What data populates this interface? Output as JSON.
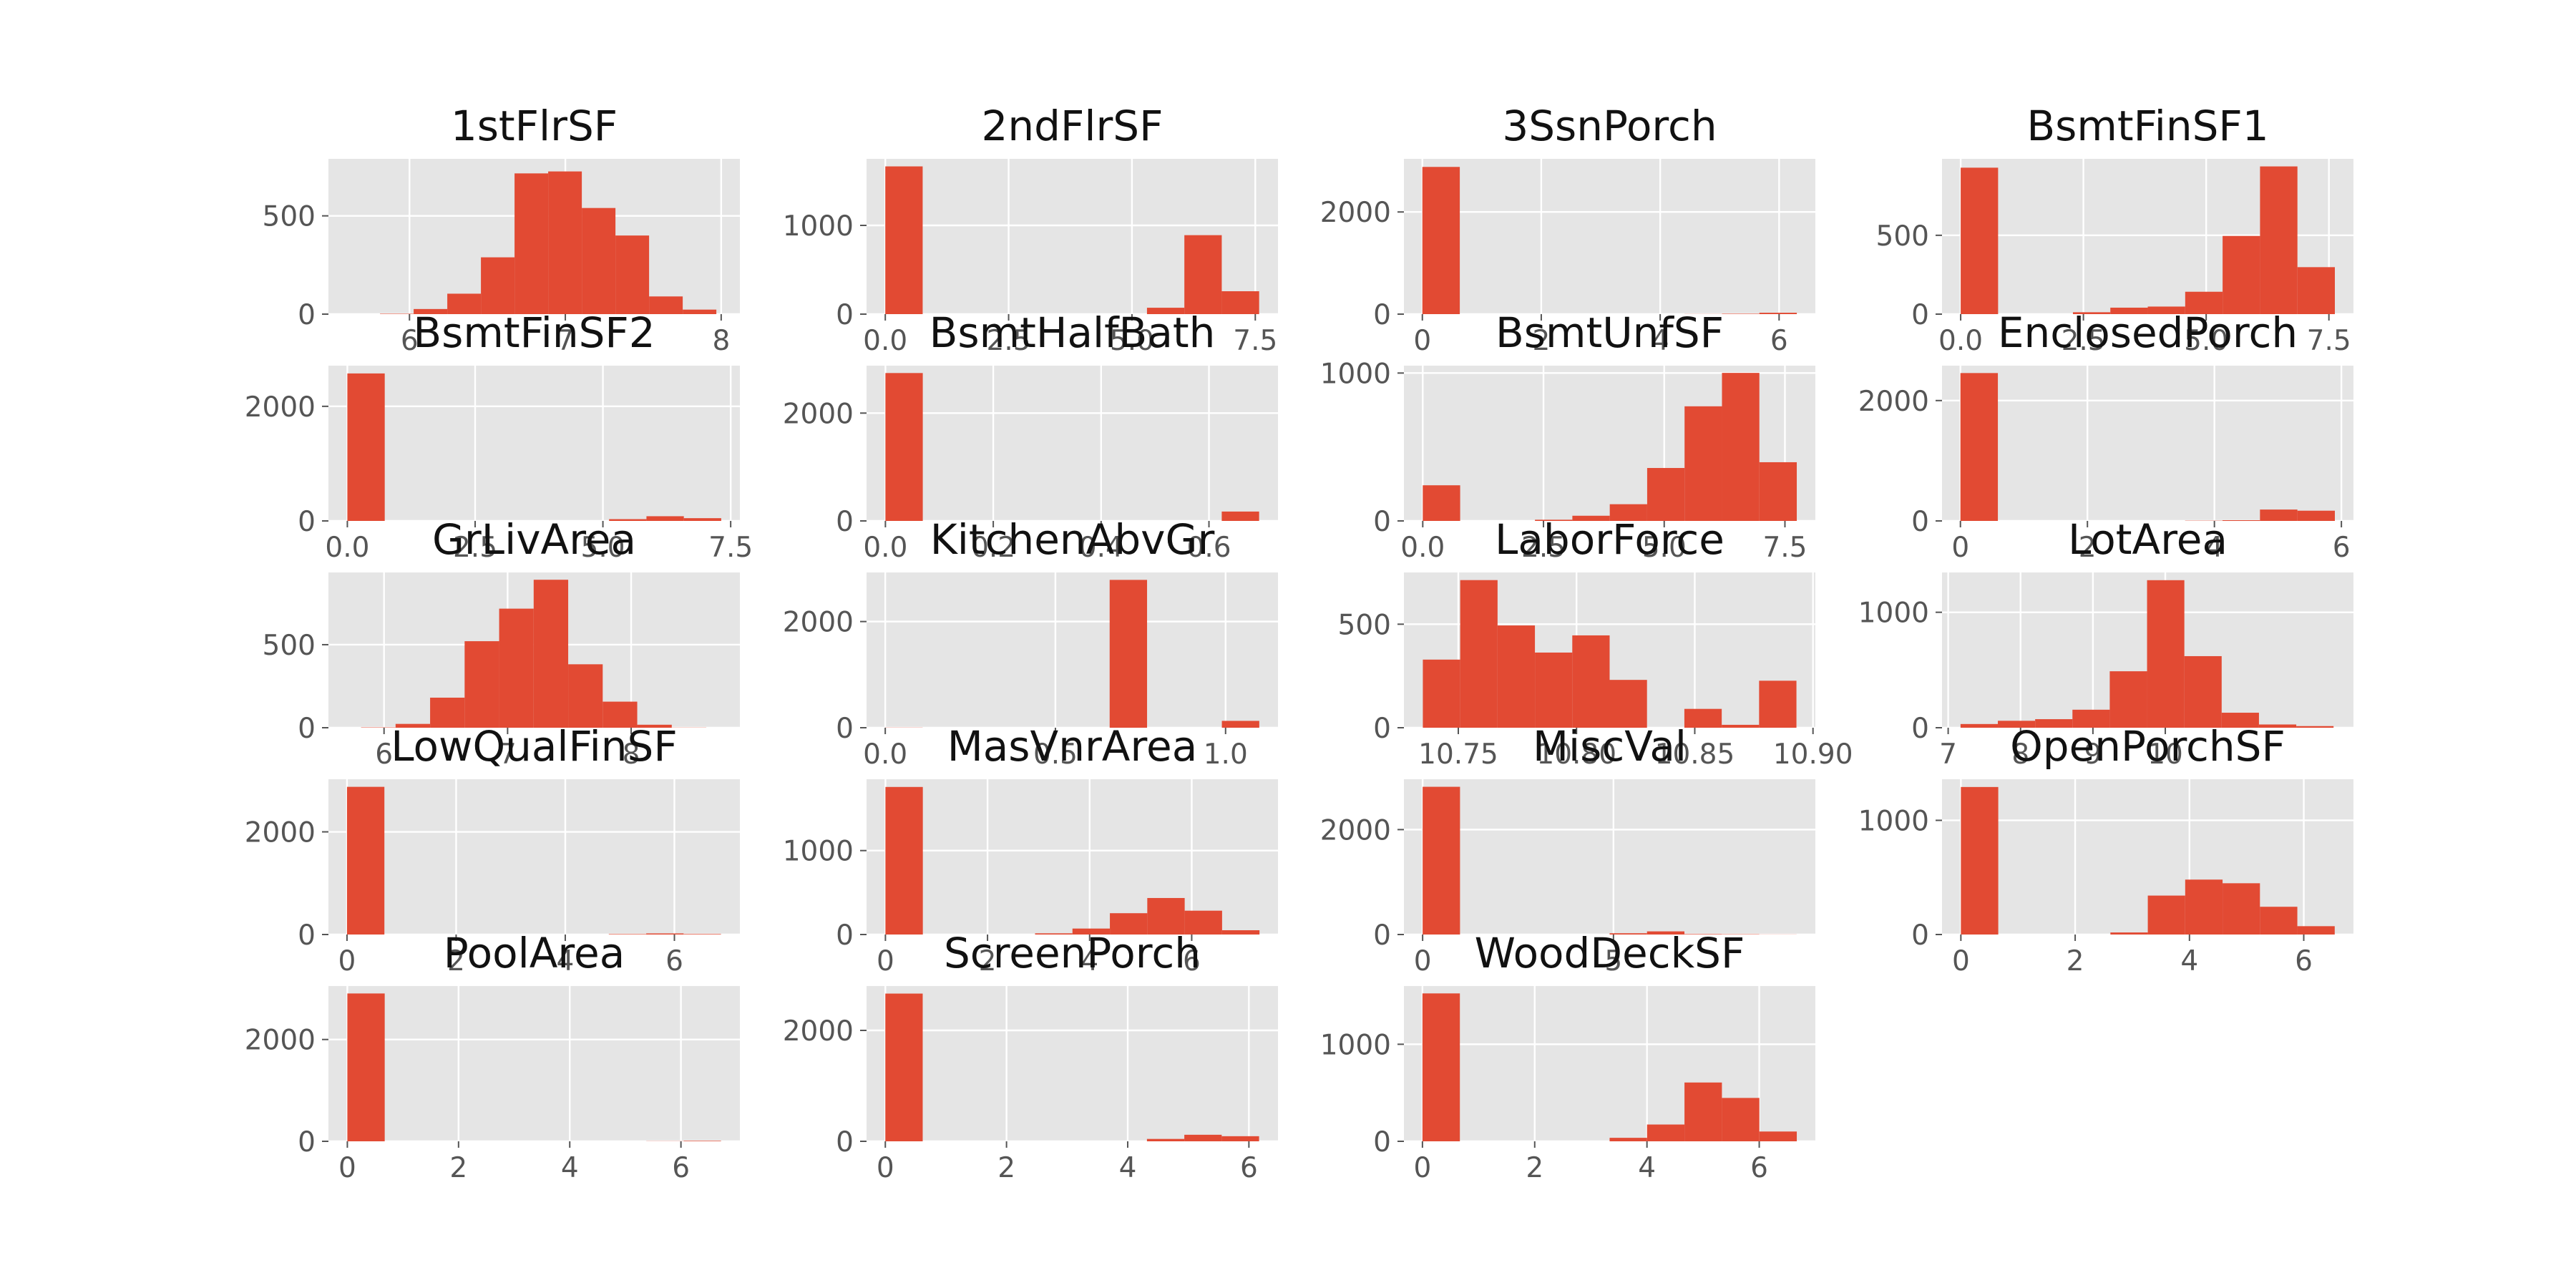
{
  "figure": {
    "bar_color": "#E24A33",
    "panel_bg": "#E5E5E5",
    "grid_color": "#FFFFFF",
    "tick_color": "#555555"
  },
  "chart_data": [
    {
      "type": "bar",
      "title": "1stFlrSF",
      "bins": {
        "start": 5.811,
        "width": 0.2158,
        "counts": [
          2,
          26,
          104,
          289,
          716,
          726,
          540,
          400,
          90,
          23
        ]
      },
      "xlim": [
        5.48,
        8.12
      ],
      "ylim": [
        0,
        790
      ],
      "xticks": [
        {
          "v": 6,
          "l": "6"
        },
        {
          "v": 7,
          "l": "7"
        },
        {
          "v": 8,
          "l": "8"
        }
      ],
      "yticks": [
        {
          "v": 0,
          "l": "0"
        },
        {
          "v": 500,
          "l": "500"
        }
      ],
      "grid": true
    },
    {
      "type": "bar",
      "title": "2ndFlrSF",
      "bins": {
        "start": 0,
        "width": 0.7578,
        "counts": [
          1665,
          0,
          0,
          0,
          0,
          0,
          0,
          72,
          890,
          258
        ]
      },
      "xlim": [
        -0.38,
        7.96
      ],
      "ylim": [
        0,
        1750
      ],
      "xticks": [
        {
          "v": 0,
          "l": "0.0"
        },
        {
          "v": 2.5,
          "l": "2.5"
        },
        {
          "v": 5,
          "l": "5.0"
        },
        {
          "v": 7.5,
          "l": "7.5"
        }
      ],
      "yticks": [
        {
          "v": 0,
          "l": "0"
        },
        {
          "v": 1000,
          "l": "1000"
        }
      ],
      "grid": true
    },
    {
      "type": "bar",
      "title": "3SsnPorch",
      "bins": {
        "start": 0,
        "width": 0.6298,
        "counts": [
          2882,
          0,
          0,
          0,
          0,
          0,
          0,
          2,
          8,
          27
        ]
      },
      "xlim": [
        -0.31,
        6.61
      ],
      "ylim": [
        0,
        3040
      ],
      "xticks": [
        {
          "v": 0,
          "l": "0"
        },
        {
          "v": 2,
          "l": "2"
        },
        {
          "v": 4,
          "l": "4"
        },
        {
          "v": 6,
          "l": "6"
        }
      ],
      "yticks": [
        {
          "v": 0,
          "l": "0"
        },
        {
          "v": 2000,
          "l": "2000"
        }
      ],
      "grid": true
    },
    {
      "type": "bar",
      "title": "BsmtFinSF1",
      "bins": {
        "start": 0,
        "width": 0.7621,
        "counts": [
          929,
          0,
          0,
          12,
          41,
          48,
          142,
          496,
          937,
          298
        ]
      },
      "xlim": [
        -0.38,
        8.0
      ],
      "ylim": [
        0,
        985
      ],
      "xticks": [
        {
          "v": 0,
          "l": "0.0"
        },
        {
          "v": 2.5,
          "l": "2.5"
        },
        {
          "v": 5,
          "l": "5.0"
        },
        {
          "v": 7.5,
          "l": "7.5"
        }
      ],
      "yticks": [
        {
          "v": 0,
          "l": "0"
        },
        {
          "v": 500,
          "l": "500"
        }
      ],
      "grid": true
    },
    {
      "type": "bar",
      "title": "BsmtFinSF2",
      "bins": {
        "start": 0,
        "width": 0.7315,
        "counts": [
          2574,
          0,
          0,
          0,
          0,
          0,
          0,
          31,
          82,
          48
        ]
      },
      "xlim": [
        -0.37,
        7.68
      ],
      "ylim": [
        0,
        2710
      ],
      "xticks": [
        {
          "v": 0,
          "l": "0.0"
        },
        {
          "v": 2.5,
          "l": "2.5"
        },
        {
          "v": 5,
          "l": "5.0"
        },
        {
          "v": 7.5,
          "l": "7.5"
        }
      ],
      "yticks": [
        {
          "v": 0,
          "l": "0"
        },
        {
          "v": 2000,
          "l": "2000"
        }
      ],
      "grid": true
    },
    {
      "type": "bar",
      "title": "BsmtHalfBath",
      "bins": {
        "start": 0,
        "width": 0.0693,
        "counts": [
          2743,
          0,
          0,
          0,
          0,
          0,
          0,
          0,
          0,
          174
        ]
      },
      "xlim": [
        -0.035,
        0.728
      ],
      "ylim": [
        0,
        2880
      ],
      "xticks": [
        {
          "v": 0,
          "l": "0.0"
        },
        {
          "v": 0.2,
          "l": "0.2"
        },
        {
          "v": 0.4,
          "l": "0.4"
        },
        {
          "v": 0.6,
          "l": "0.6"
        }
      ],
      "yticks": [
        {
          "v": 0,
          "l": "0"
        },
        {
          "v": 2000,
          "l": "2000"
        }
      ],
      "grid": true
    },
    {
      "type": "bar",
      "title": "BsmtUnfSF",
      "bins": {
        "start": 0,
        "width": 0.7745,
        "counts": [
          241,
          0,
          0,
          8,
          35,
          113,
          358,
          775,
          1001,
          397
        ]
      },
      "xlim": [
        -0.39,
        8.13
      ],
      "ylim": [
        0,
        1050
      ],
      "xticks": [
        {
          "v": 0,
          "l": "0.0"
        },
        {
          "v": 2.5,
          "l": "2.5"
        },
        {
          "v": 5,
          "l": "5.0"
        },
        {
          "v": 7.5,
          "l": "7.5"
        }
      ],
      "yticks": [
        {
          "v": 0,
          "l": "0"
        },
        {
          "v": 1000,
          "l": "1000"
        }
      ],
      "grid": true
    },
    {
      "type": "bar",
      "title": "EnclosedPorch",
      "bins": {
        "start": 0,
        "width": 0.5897,
        "counts": [
          2457,
          0,
          0,
          0,
          0,
          0,
          4,
          12,
          189,
          170
        ]
      },
      "xlim": [
        -0.29,
        6.19
      ],
      "ylim": [
        0,
        2580
      ],
      "xticks": [
        {
          "v": 0,
          "l": "0"
        },
        {
          "v": 2,
          "l": "2"
        },
        {
          "v": 4,
          "l": "4"
        },
        {
          "v": 6,
          "l": "6"
        }
      ],
      "yticks": [
        {
          "v": 0,
          "l": "0"
        },
        {
          "v": 2000,
          "l": "2000"
        }
      ],
      "grid": true
    },
    {
      "type": "bar",
      "title": "GrLivArea",
      "bins": {
        "start": 5.814,
        "width": 0.2794,
        "counts": [
          2,
          23,
          181,
          521,
          717,
          891,
          382,
          157,
          18,
          1
        ]
      },
      "xlim": [
        5.55,
        8.88
      ],
      "ylim": [
        0,
        935
      ],
      "xticks": [
        {
          "v": 6,
          "l": "6"
        },
        {
          "v": 7,
          "l": "7"
        },
        {
          "v": 8,
          "l": "8"
        }
      ],
      "yticks": [
        {
          "v": 0,
          "l": "0"
        },
        {
          "v": 500,
          "l": "500"
        }
      ],
      "grid": true
    },
    {
      "type": "bar",
      "title": "KitchenAbvGr",
      "bins": {
        "start": 0,
        "width": 0.1099,
        "counts": [
          3,
          0,
          0,
          0,
          0,
          0,
          2785,
          0,
          0,
          129
        ]
      },
      "xlim": [
        -0.055,
        1.154
      ],
      "ylim": [
        0,
        2925
      ],
      "xticks": [
        {
          "v": 0,
          "l": "0.0"
        },
        {
          "v": 0.5,
          "l": "0.5"
        },
        {
          "v": 1,
          "l": "1.0"
        }
      ],
      "yticks": [
        {
          "v": 0,
          "l": "0"
        },
        {
          "v": 2000,
          "l": "2000"
        }
      ],
      "grid": true
    },
    {
      "type": "bar",
      "title": "LaborForce",
      "bins": {
        "start": 10.735,
        "width": 0.0158,
        "counts": [
          329,
          713,
          494,
          363,
          446,
          231,
          0,
          91,
          14,
          227
        ]
      },
      "xlim": [
        10.727,
        10.901
      ],
      "ylim": [
        0,
        750
      ],
      "xticks": [
        {
          "v": 10.75,
          "l": "10.75"
        },
        {
          "v": 10.8,
          "l": "10.80"
        },
        {
          "v": 10.85,
          "l": "10.85"
        },
        {
          "v": 10.9,
          "l": "10.90"
        }
      ],
      "yticks": [
        {
          "v": 0,
          "l": "0"
        },
        {
          "v": 500,
          "l": "500"
        }
      ],
      "grid": true
    },
    {
      "type": "bar",
      "title": "LotArea",
      "bins": {
        "start": 7.171,
        "width": 0.5154,
        "counts": [
          32,
          60,
          74,
          156,
          489,
          1278,
          620,
          130,
          28,
          14
        ]
      },
      "xlim": [
        6.915,
        12.6
      ],
      "ylim": [
        0,
        1345
      ],
      "xticks": [
        {
          "v": 7,
          "l": "7"
        },
        {
          "v": 8,
          "l": "8"
        },
        {
          "v": 9,
          "l": "9"
        },
        {
          "v": 10,
          "l": "10"
        }
      ],
      "yticks": [
        {
          "v": 0,
          "l": "0"
        },
        {
          "v": 1000,
          "l": "1000"
        }
      ],
      "grid": true
    },
    {
      "type": "bar",
      "title": "LowQualFinSF",
      "bins": {
        "start": 0,
        "width": 0.6854,
        "counts": [
          2877,
          0,
          0,
          0,
          0,
          0,
          0,
          9,
          21,
          10
        ]
      },
      "xlim": [
        -0.34,
        7.2
      ],
      "ylim": [
        0,
        3025
      ],
      "xticks": [
        {
          "v": 0,
          "l": "0"
        },
        {
          "v": 2,
          "l": "2"
        },
        {
          "v": 4,
          "l": "4"
        },
        {
          "v": 6,
          "l": "6"
        }
      ],
      "yticks": [
        {
          "v": 0,
          "l": "0"
        },
        {
          "v": 2000,
          "l": "2000"
        }
      ],
      "grid": true
    },
    {
      "type": "bar",
      "title": "MasVnrArea",
      "bins": {
        "start": 0,
        "width": 0.7328,
        "counts": [
          1758,
          0,
          0,
          0,
          14,
          71,
          254,
          435,
          284,
          51
        ]
      },
      "xlim": [
        -0.37,
        7.69
      ],
      "ylim": [
        0,
        1850
      ],
      "xticks": [
        {
          "v": 0,
          "l": "0"
        },
        {
          "v": 2,
          "l": "2"
        },
        {
          "v": 4,
          "l": "4"
        },
        {
          "v": 6,
          "l": "6"
        }
      ],
      "yticks": [
        {
          "v": 0,
          "l": "0"
        },
        {
          "v": 1000,
          "l": "1000"
        }
      ],
      "grid": true
    },
    {
      "type": "bar",
      "title": "MiscVal",
      "bins": {
        "start": 0,
        "width": 0.9799,
        "counts": [
          2816,
          0,
          0,
          0,
          0,
          24,
          60,
          9,
          6,
          2
        ]
      },
      "xlim": [
        -0.49,
        10.29
      ],
      "ylim": [
        0,
        2960
      ],
      "xticks": [
        {
          "v": 0,
          "l": "0"
        },
        {
          "v": 5,
          "l": "5"
        }
      ],
      "yticks": [
        {
          "v": 0,
          "l": "0"
        },
        {
          "v": 2000,
          "l": "2000"
        }
      ],
      "grid": true
    },
    {
      "type": "bar",
      "title": "OpenPorchSF",
      "bins": {
        "start": 0,
        "width": 0.6542,
        "counts": [
          1292,
          0,
          0,
          0,
          18,
          341,
          481,
          449,
          243,
          73
        ]
      },
      "xlim": [
        -0.33,
        6.87
      ],
      "ylim": [
        0,
        1360
      ],
      "xticks": [
        {
          "v": 0,
          "l": "0"
        },
        {
          "v": 2,
          "l": "2"
        },
        {
          "v": 4,
          "l": "4"
        },
        {
          "v": 6,
          "l": "6"
        }
      ],
      "yticks": [
        {
          "v": 0,
          "l": "0"
        },
        {
          "v": 1000,
          "l": "1000"
        }
      ],
      "grid": true
    },
    {
      "type": "bar",
      "title": "PoolArea",
      "bins": {
        "start": 0,
        "width": 0.6721,
        "counts": [
          2904,
          0,
          0,
          0,
          0,
          0,
          0,
          0,
          3,
          10
        ]
      },
      "xlim": [
        -0.34,
        7.06
      ],
      "ylim": [
        0,
        3050
      ],
      "xticks": [
        {
          "v": 0,
          "l": "0"
        },
        {
          "v": 2,
          "l": "2"
        },
        {
          "v": 4,
          "l": "4"
        },
        {
          "v": 6,
          "l": "6"
        }
      ],
      "yticks": [
        {
          "v": 0,
          "l": "0"
        },
        {
          "v": 2000,
          "l": "2000"
        }
      ],
      "grid": true
    },
    {
      "type": "bar",
      "title": "ScreenPorch",
      "bins": {
        "start": 0,
        "width": 0.6168,
        "counts": [
          2664,
          0,
          0,
          0,
          0,
          0,
          0,
          43,
          118,
          92
        ]
      },
      "xlim": [
        -0.31,
        6.48
      ],
      "ylim": [
        0,
        2800
      ],
      "xticks": [
        {
          "v": 0,
          "l": "0"
        },
        {
          "v": 2,
          "l": "2"
        },
        {
          "v": 4,
          "l": "4"
        },
        {
          "v": 6,
          "l": "6"
        }
      ],
      "yticks": [
        {
          "v": 0,
          "l": "0"
        },
        {
          "v": 2000,
          "l": "2000"
        }
      ],
      "grid": true
    },
    {
      "type": "bar",
      "title": "WoodDeckSF",
      "bins": {
        "start": 0,
        "width": 0.6669,
        "counts": [
          1524,
          0,
          0,
          0,
          0,
          36,
          173,
          606,
          447,
          101
        ]
      },
      "xlim": [
        -0.33,
        7.0
      ],
      "ylim": [
        0,
        1600
      ],
      "xticks": [
        {
          "v": 0,
          "l": "0"
        },
        {
          "v": 2,
          "l": "2"
        },
        {
          "v": 4,
          "l": "4"
        },
        {
          "v": 6,
          "l": "6"
        }
      ],
      "yticks": [
        {
          "v": 0,
          "l": "0"
        },
        {
          "v": 1000,
          "l": "1000"
        }
      ],
      "grid": true
    }
  ]
}
